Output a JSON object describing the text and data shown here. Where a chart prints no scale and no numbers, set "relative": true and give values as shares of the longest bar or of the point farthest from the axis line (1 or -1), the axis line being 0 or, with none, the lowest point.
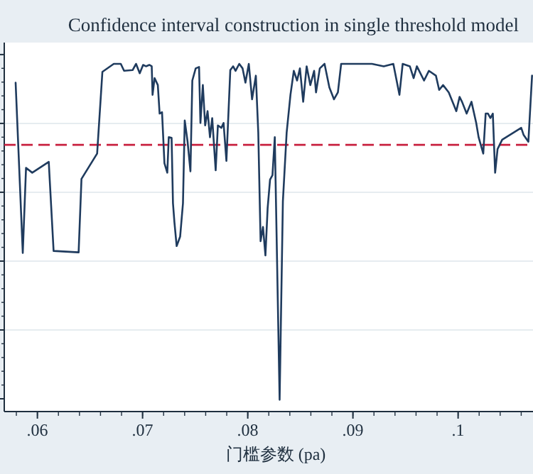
{
  "chart_data": {
    "type": "line",
    "title": "Confidence interval construction in single threshold model",
    "xlabel": "门槛参数 (pa)",
    "relative": true,
    "grid": "y",
    "marker": "none",
    "line_style": "solid",
    "xlim": [
      0.05685,
      0.10712
    ],
    "xticks": [
      {
        "value": 0.06,
        "label": ".06"
      },
      {
        "value": 0.07,
        "label": ".07"
      },
      {
        "value": 0.08,
        "label": ".08"
      },
      {
        "value": 0.09,
        "label": ".09"
      },
      {
        "value": 0.1,
        "label": ".1"
      }
    ],
    "ref_lines": [
      {
        "axis": "y",
        "value": 0.767,
        "label": null,
        "color": "#c8213f",
        "line_style": "dashed"
      }
    ],
    "series": [
      {
        "color": "#1f3b5e",
        "x": [
          0.05793,
          0.05861,
          0.05892,
          0.05951,
          0.06108,
          0.06154,
          0.06392,
          0.06419,
          0.06568,
          0.06618,
          0.06726,
          0.06793,
          0.06824,
          0.06905,
          0.06938,
          0.06973,
          0.07005,
          0.07032,
          0.07064,
          0.07087,
          0.07095,
          0.07114,
          0.07145,
          0.07162,
          0.07185,
          0.07208,
          0.07235,
          0.07249,
          0.07276,
          0.07289,
          0.07303,
          0.07324,
          0.07357,
          0.07384,
          0.07401,
          0.07428,
          0.07455,
          0.07473,
          0.07505,
          0.07537,
          0.0755,
          0.07573,
          0.07595,
          0.07618,
          0.07641,
          0.07662,
          0.07695,
          0.07716,
          0.07749,
          0.0777,
          0.07797,
          0.07834,
          0.07861,
          0.07884,
          0.07919,
          0.07951,
          0.07978,
          0.0801,
          0.08041,
          0.08077,
          0.081,
          0.08122,
          0.08145,
          0.08168,
          0.08189,
          0.08212,
          0.08235,
          0.08257,
          0.08303,
          0.08334,
          0.0837,
          0.08406,
          0.08438,
          0.08469,
          0.08496,
          0.08527,
          0.0856,
          0.08595,
          0.08631,
          0.08649,
          0.08685,
          0.0873,
          0.08776,
          0.0882,
          0.08857,
          0.08888,
          0.09046,
          0.09181,
          0.09293,
          0.09384,
          0.09442,
          0.09473,
          0.09541,
          0.09577,
          0.09608,
          0.09676,
          0.09722,
          0.09789,
          0.0982,
          0.09857,
          0.09911,
          0.09956,
          0.09983,
          0.10014,
          0.10037,
          0.10081,
          0.10127,
          0.10172,
          0.10195,
          0.10239,
          0.10262,
          0.10284,
          0.10307,
          0.1033,
          0.10352,
          0.10375,
          0.10419,
          0.106,
          0.10622,
          0.10668,
          0.10703
        ],
        "values": [
          0.946,
          0.456,
          0.701,
          0.687,
          0.718,
          0.462,
          0.458,
          0.669,
          0.742,
          0.977,
          1.0,
          1.0,
          0.98,
          0.982,
          1.0,
          0.973,
          0.997,
          0.993,
          0.997,
          0.993,
          0.911,
          0.959,
          0.939,
          0.857,
          0.861,
          0.714,
          0.687,
          0.789,
          0.787,
          0.599,
          0.544,
          0.476,
          0.503,
          0.599,
          0.837,
          0.776,
          0.691,
          0.952,
          0.987,
          0.991,
          0.83,
          0.939,
          0.823,
          0.864,
          0.789,
          0.844,
          0.694,
          0.823,
          0.816,
          0.83,
          0.721,
          0.982,
          0.993,
          0.98,
          1.0,
          0.987,
          0.946,
          1.0,
          0.898,
          0.966,
          0.803,
          0.49,
          0.531,
          0.449,
          0.585,
          0.667,
          0.68,
          0.789,
          0.034,
          0.605,
          0.803,
          0.911,
          0.98,
          0.952,
          0.987,
          0.891,
          0.993,
          0.939,
          0.98,
          0.918,
          0.987,
          1.0,
          0.932,
          0.898,
          0.918,
          1.0,
          1.0,
          1.0,
          0.993,
          1.0,
          0.911,
          1.0,
          0.993,
          0.959,
          0.993,
          0.952,
          0.98,
          0.966,
          0.925,
          0.939,
          0.918,
          0.884,
          0.864,
          0.905,
          0.891,
          0.857,
          0.891,
          0.83,
          0.789,
          0.742,
          0.857,
          0.857,
          0.844,
          0.857,
          0.687,
          0.755,
          0.782,
          0.816,
          0.796,
          0.776,
          0.966
        ]
      }
    ]
  }
}
